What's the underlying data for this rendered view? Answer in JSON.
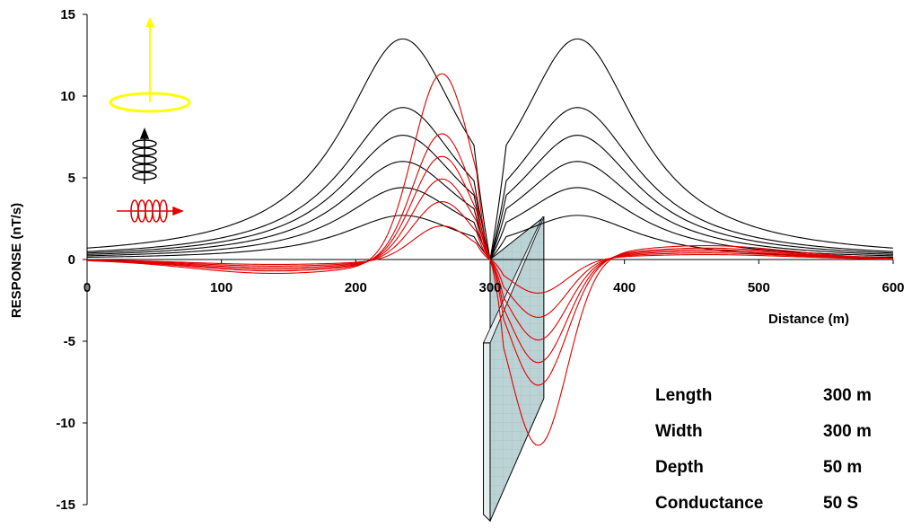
{
  "chart_data": {
    "type": "line",
    "title": "",
    "xlabel": "Distance (m)",
    "ylabel": "RESPONSE (nT/s)",
    "xlim": [
      0,
      600
    ],
    "ylim": [
      -15,
      15
    ],
    "x_ticks": [
      0,
      100,
      200,
      300,
      400,
      500,
      600
    ],
    "y_ticks": [
      15,
      10,
      5,
      0,
      -5,
      -10,
      -15
    ],
    "grid": false,
    "legend": "none",
    "colors": {
      "black_series": "#000000",
      "red_series": "#e00000",
      "plate_fill": "#bcd3d6",
      "loop_icon": "#ffff00"
    },
    "black_series": [
      {
        "peak": 13.5,
        "tail": 0.55
      },
      {
        "peak": 9.3,
        "tail": 0.45
      },
      {
        "peak": 7.6,
        "tail": 0.4
      },
      {
        "peak": 6.0,
        "tail": 0.35
      },
      {
        "peak": 4.4,
        "tail": 0.3
      },
      {
        "peak": 2.7,
        "tail": 0.25
      }
    ],
    "red_series": [
      {
        "max": 11.5,
        "min": -11.5,
        "side": 0.85
      },
      {
        "max": 7.8,
        "min": -7.8,
        "side": 0.7
      },
      {
        "max": 6.4,
        "min": -6.4,
        "side": 0.6
      },
      {
        "max": 5.0,
        "min": -5.0,
        "side": 0.5
      },
      {
        "max": 3.6,
        "min": -3.6,
        "side": 0.4
      },
      {
        "max": 2.1,
        "min": -2.1,
        "side": 0.3
      }
    ],
    "plate": {
      "top_left": [
        300,
        0
      ],
      "top_right": [
        340,
        2.6
      ],
      "bottom_left": [
        300,
        -16
      ],
      "bottom_right": [
        340,
        -8.5
      ]
    },
    "icons": [
      "horizontal-loop-icon",
      "vertical-coil-icon",
      "horizontal-coil-icon"
    ]
  },
  "model_params": [
    {
      "label": "Length",
      "value": "300 m"
    },
    {
      "label": "Width",
      "value": "300 m"
    },
    {
      "label": "Depth",
      "value": "50 m"
    },
    {
      "label": "Conductance",
      "value": "50 S"
    }
  ]
}
